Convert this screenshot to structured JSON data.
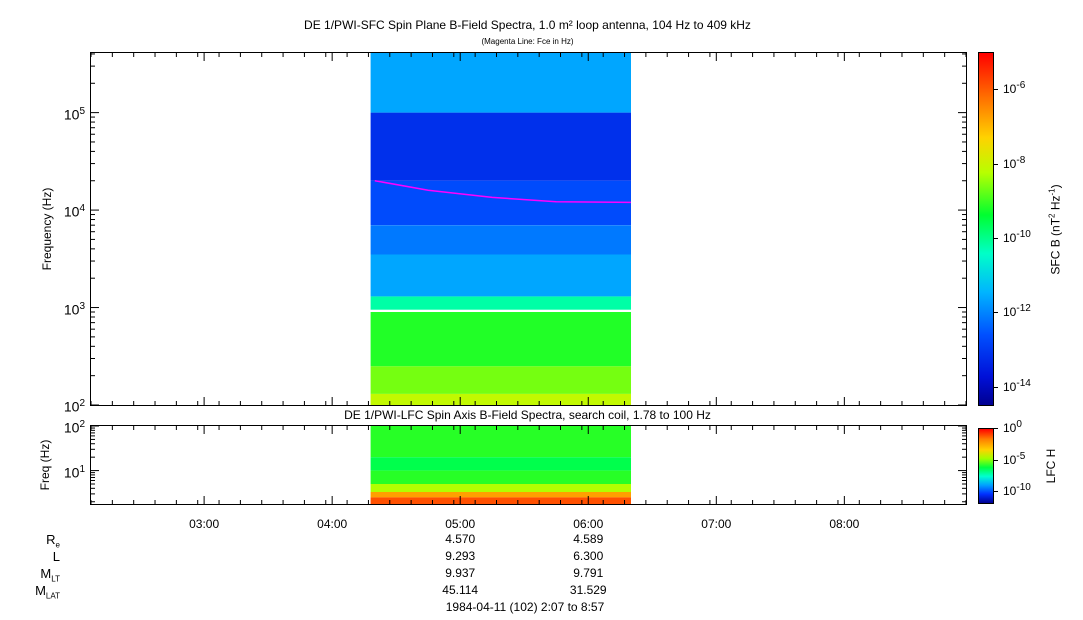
{
  "top_panel": {
    "title": "DE 1/PWI-SFC  Spin Plane B-Field Spectra, 1.0 m² loop antenna, 104 Hz to 409 kHz",
    "subtitle": "(Magenta Line: Fce in Hz)",
    "ylabel": "Frequency (Hz)",
    "yticks": [
      "10",
      "10",
      "10",
      "10"
    ],
    "ytick_exps": [
      "2",
      "3",
      "4",
      "5"
    ],
    "colorbar_label": "SFC B (nT",
    "colorbar_label_sup1": "2",
    "colorbar_label_mid": " Hz",
    "colorbar_label_sup2": "-1",
    "colorbar_label_end": ")",
    "colorbar_ticks": [
      "10",
      "10",
      "10",
      "10",
      "10"
    ],
    "colorbar_tick_exps": [
      "-6",
      "-8",
      "-10",
      "-12",
      "-14"
    ]
  },
  "bottom_panel": {
    "title": "DE 1/PWI-LFC  Spin Axis B-Field Spectra, search coil, 1.78 to 100 Hz",
    "ylabel": "Freq (Hz)",
    "yticks": [
      "10",
      "10"
    ],
    "ytick_exps": [
      "2",
      "1"
    ],
    "colorbar_label": "LFC H",
    "colorbar_ticks": [
      "10",
      "10",
      "10"
    ],
    "colorbar_tick_exps": [
      "0",
      "-5",
      "-10"
    ]
  },
  "time_axis": {
    "ticks": [
      "03:00",
      "04:00",
      "05:00",
      "06:00",
      "07:00",
      "08:00"
    ]
  },
  "ephemeris": {
    "rows": [
      {
        "label": "R",
        "sub": "e",
        "values": [
          "4.570",
          "4.589"
        ]
      },
      {
        "label": "L",
        "sub": "",
        "values": [
          "9.293",
          "6.300"
        ]
      },
      {
        "label": "M",
        "sub": "LT",
        "values": [
          "9.937",
          "9.791"
        ]
      },
      {
        "label": "M",
        "sub": "LAT",
        "values": [
          "45.114",
          "31.529"
        ]
      }
    ],
    "date_range": "1984-04-11 (102) 2:07 to 8:57"
  },
  "chart_data": [
    {
      "type": "heatmap",
      "title": "DE 1/PWI-SFC  Spin Plane B-Field Spectra, 1.0 m² loop antenna, 104 Hz to 409 kHz",
      "xlabel": "",
      "ylabel": "Frequency (Hz)",
      "x_range": [
        "02:07",
        "08:57"
      ],
      "data_coverage": [
        "04:18",
        "06:20"
      ],
      "y_scale": "log",
      "ylim": [
        100,
        409000
      ],
      "colorbar": {
        "label": "SFC B (nT^2 Hz^-1)",
        "scale": "log",
        "range": [
          3e-15,
          1e-05
        ]
      },
      "bands": [
        {
          "f_low": 100,
          "f_high": 130,
          "level": 1e-08
        },
        {
          "f_low": 130,
          "f_high": 250,
          "level": 3e-09
        },
        {
          "f_low": 250,
          "f_high": 900,
          "level": 1e-09
        },
        {
          "f_low": 950,
          "f_high": 1300,
          "level": 1e-10
        },
        {
          "f_low": 1300,
          "f_high": 3500,
          "level": 3e-12
        },
        {
          "f_low": 3500,
          "f_high": 7000,
          "level": 1e-12
        },
        {
          "f_low": 7000,
          "f_high": 20000,
          "level": 3e-13
        },
        {
          "f_low": 20000,
          "f_high": 100000,
          "level": 1e-13
        },
        {
          "f_low": 100000,
          "f_high": 409000,
          "level": 3e-12
        }
      ],
      "series": [
        {
          "name": "Fce",
          "x": [
            "04:20",
            "04:45",
            "05:15",
            "05:45",
            "06:20"
          ],
          "y": [
            20000,
            16000,
            13500,
            12200,
            12000
          ]
        }
      ]
    },
    {
      "type": "heatmap",
      "title": "DE 1/PWI-LFC  Spin Axis B-Field Spectra, search coil, 1.78 to 100 Hz",
      "xlabel": "",
      "ylabel": "Freq (Hz)",
      "x_range": [
        "02:07",
        "08:57"
      ],
      "data_coverage": [
        "04:18",
        "06:20"
      ],
      "y_scale": "log",
      "ylim": [
        1.78,
        100
      ],
      "colorbar": {
        "label": "LFC H",
        "scale": "log",
        "range": [
          1e-12,
          1
        ]
      },
      "bands": [
        {
          "f_low": 20,
          "f_high": 100,
          "level": 1e-05
        },
        {
          "f_low": 10,
          "f_high": 20,
          "level": 3e-06
        },
        {
          "f_low": 5,
          "f_high": 10,
          "level": 1e-05
        },
        {
          "f_low": 3.3,
          "f_high": 5,
          "level": 0.0001
        },
        {
          "f_low": 2.5,
          "f_high": 3.3,
          "level": 0.01
        },
        {
          "f_low": 1.78,
          "f_high": 2.5,
          "level": 0.1
        }
      ]
    }
  ]
}
